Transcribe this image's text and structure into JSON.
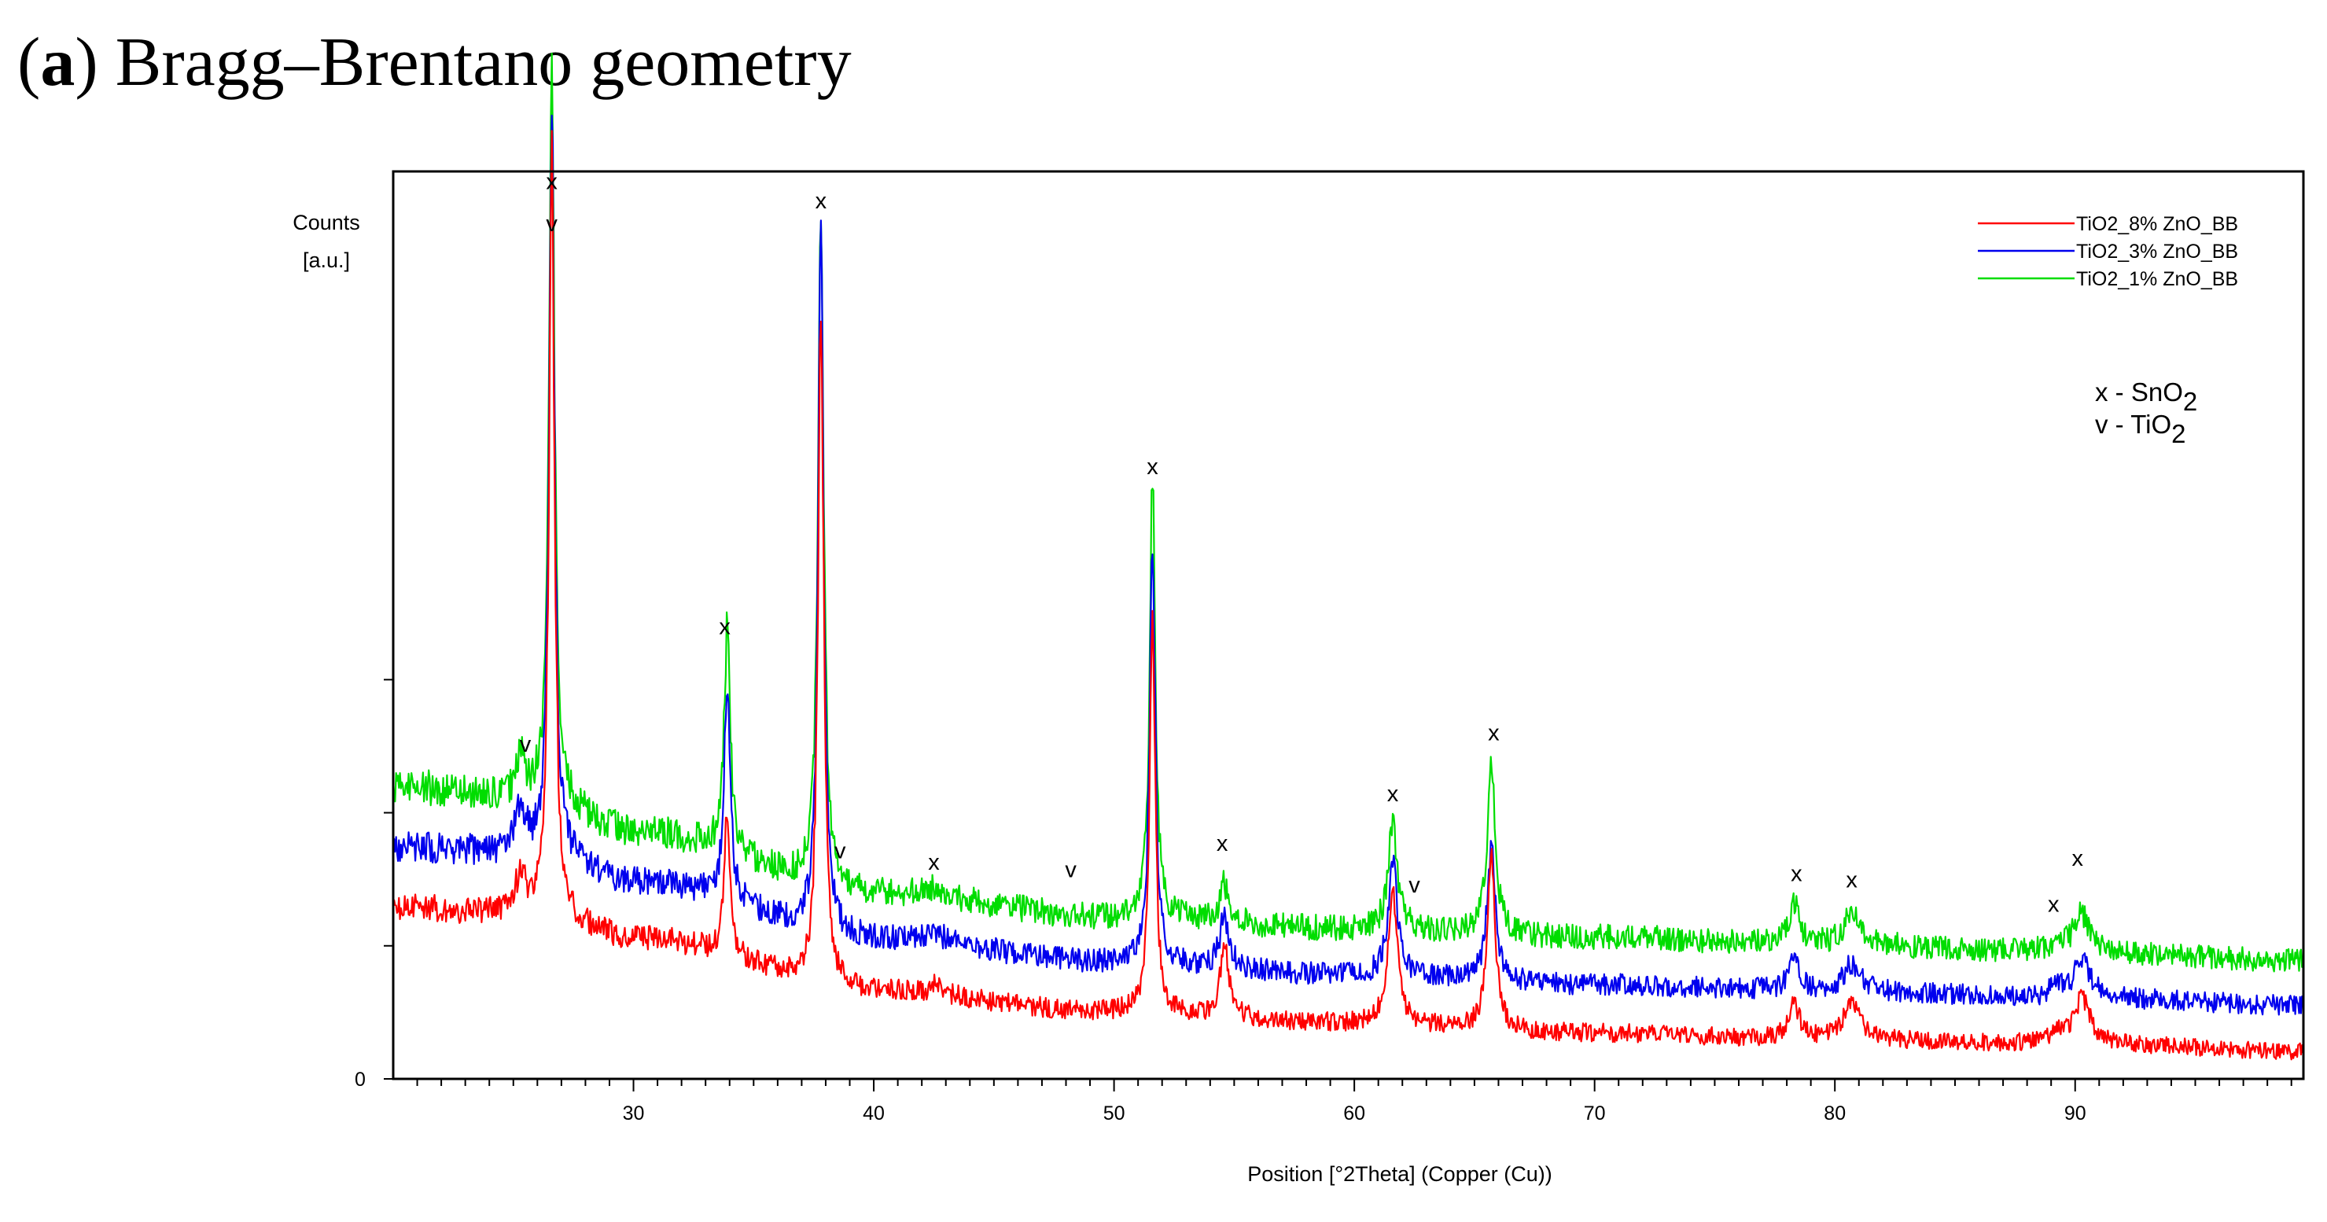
{
  "figure": {
    "panel_label": "a",
    "heading": "Bragg–Brentano geometry"
  },
  "chart_data": {
    "type": "line",
    "title": "",
    "xlabel": "Position [°2Theta] (Copper (Cu))",
    "ylabel_line1": "Counts",
    "ylabel_line2": "[a.u.]",
    "xlim": [
      20,
      99.5
    ],
    "ylim": [
      0,
      100
    ],
    "x_ticks": [
      30,
      40,
      50,
      60,
      70,
      80,
      90
    ],
    "y_tick_labels": [
      {
        "value": 0,
        "label": "0"
      }
    ],
    "legend_position": "top-right",
    "series": [
      {
        "name": "TiO2_8% ZnO_BB",
        "legend_label": "TiO2_8% ZnO_BB",
        "color": "#ff0000",
        "baseline": [
          [
            20,
            22.5
          ],
          [
            26,
            21.5
          ],
          [
            30,
            18.5
          ],
          [
            40,
            11.5
          ],
          [
            50,
            8.8
          ],
          [
            60,
            7.3
          ],
          [
            70,
            6.0
          ],
          [
            80,
            5.1
          ],
          [
            90,
            4.6
          ],
          [
            99.5,
            3.6
          ]
        ],
        "peaks": [
          [
            25.3,
            5,
            0.25
          ],
          [
            26.6,
            98,
            0.14
          ],
          [
            33.9,
            20,
            0.15
          ],
          [
            37.8,
            91,
            0.14
          ],
          [
            42.6,
            1.5,
            0.3
          ],
          [
            51.6,
            51,
            0.14
          ],
          [
            54.6,
            9,
            0.22
          ],
          [
            61.6,
            18,
            0.22
          ],
          [
            65.7,
            22,
            0.2
          ],
          [
            78.3,
            4.5,
            0.3
          ],
          [
            80.7,
            5,
            0.4
          ],
          [
            89.3,
            1.5,
            0.35
          ],
          [
            90.3,
            6,
            0.4
          ]
        ]
      },
      {
        "name": "TiO2_3% ZnO_BB",
        "legend_label": "TiO2_3% ZnO_BB",
        "color": "#0000ee",
        "baseline": [
          [
            20,
            30.5
          ],
          [
            26,
            29.5
          ],
          [
            30,
            26
          ],
          [
            40,
            18.5
          ],
          [
            50,
            15.3
          ],
          [
            60,
            13.6
          ],
          [
            70,
            12.4
          ],
          [
            80,
            11.5
          ],
          [
            90,
            10.6
          ],
          [
            99.5,
            9.7
          ]
        ],
        "peaks": [
          [
            25.3,
            6,
            0.25
          ],
          [
            26.6,
            96,
            0.14
          ],
          [
            33.9,
            28,
            0.15
          ],
          [
            37.8,
            91,
            0.14
          ],
          [
            42.6,
            1.5,
            0.3
          ],
          [
            51.6,
            55,
            0.14
          ],
          [
            54.6,
            7,
            0.22
          ],
          [
            61.6,
            16,
            0.22
          ],
          [
            65.7,
            18,
            0.2
          ],
          [
            78.3,
            4,
            0.3
          ],
          [
            80.7,
            3.5,
            0.4
          ],
          [
            89.3,
            1.5,
            0.35
          ],
          [
            90.3,
            5,
            0.4
          ]
        ]
      },
      {
        "name": "TiO2_1% ZnO_BB",
        "legend_label": "TiO2_1% ZnO_BB",
        "color": "#00dd00",
        "baseline": [
          [
            20,
            38.5
          ],
          [
            26,
            36.5
          ],
          [
            30,
            32.5
          ],
          [
            40,
            24.5
          ],
          [
            50,
            21.2
          ],
          [
            60,
            19.7
          ],
          [
            70,
            18.6
          ],
          [
            80,
            17.6
          ],
          [
            90,
            16.6
          ],
          [
            99.5,
            15.6
          ]
        ],
        "peaks": [
          [
            25.3,
            5,
            0.25
          ],
          [
            26.6,
            95,
            0.14
          ],
          [
            33.9,
            30,
            0.15
          ],
          [
            37.8,
            92,
            0.14
          ],
          [
            42.6,
            1.5,
            0.3
          ],
          [
            51.6,
            57,
            0.14
          ],
          [
            54.6,
            5,
            0.22
          ],
          [
            61.6,
            14,
            0.22
          ],
          [
            65.7,
            23,
            0.2
          ],
          [
            78.3,
            5,
            0.3
          ],
          [
            80.7,
            4,
            0.4
          ],
          [
            89.3,
            1.5,
            0.35
          ],
          [
            90.3,
            5,
            0.4
          ]
        ]
      }
    ],
    "phase_key": {
      "x_line": "x - SnO",
      "x_sub": "2",
      "v_line": "v - TiO",
      "v_sub": "2"
    },
    "annotations": [
      {
        "label": "x",
        "x": 26.6,
        "y": 117
      },
      {
        "label": "v",
        "x": 26.6,
        "y": 111.5
      },
      {
        "label": "x",
        "x": 37.8,
        "y": 114.5
      },
      {
        "label": "x",
        "x": 51.6,
        "y": 79.5
      },
      {
        "label": "x",
        "x": 33.8,
        "y": 58.5
      },
      {
        "label": "v",
        "x": 25.5,
        "y": 43
      },
      {
        "label": "v",
        "x": 38.6,
        "y": 29
      },
      {
        "label": "x",
        "x": 42.5,
        "y": 27.5
      },
      {
        "label": "v",
        "x": 48.2,
        "y": 26.5
      },
      {
        "label": "x",
        "x": 54.5,
        "y": 30
      },
      {
        "label": "x",
        "x": 61.6,
        "y": 36.5
      },
      {
        "label": "v",
        "x": 62.5,
        "y": 24.5
      },
      {
        "label": "x",
        "x": 65.8,
        "y": 44.5
      },
      {
        "label": "x",
        "x": 78.4,
        "y": 26
      },
      {
        "label": "x",
        "x": 80.7,
        "y": 25.2
      },
      {
        "label": "x",
        "x": 89.1,
        "y": 22
      },
      {
        "label": "x",
        "x": 90.1,
        "y": 28
      }
    ]
  }
}
